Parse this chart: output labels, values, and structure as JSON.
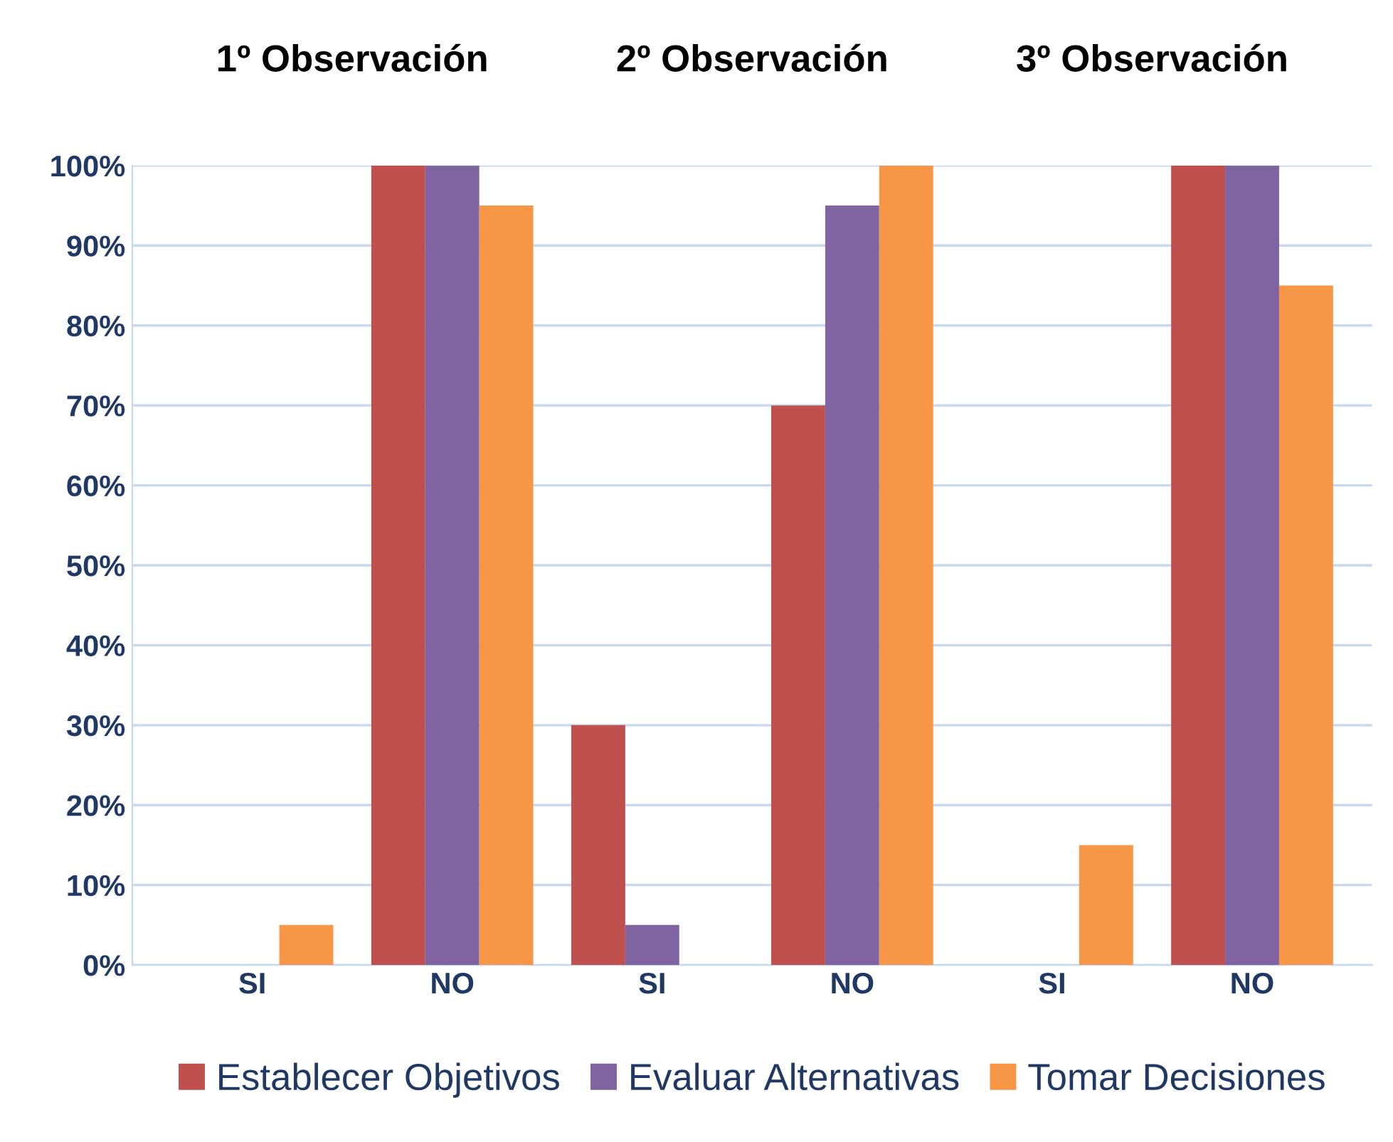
{
  "chart_data": {
    "type": "bar",
    "categories": [
      "SI",
      "NO",
      "SI",
      "NO",
      "SI",
      "NO"
    ],
    "series": [
      {
        "name": "Establecer Objetivos",
        "color": "#c0504d",
        "values": [
          0,
          100,
          30,
          70,
          0,
          100
        ]
      },
      {
        "name": "Evaluar Alternativas",
        "color": "#8064a2",
        "values": [
          0,
          100,
          5,
          95,
          0,
          100
        ]
      },
      {
        "name": "Tomar Decisiones",
        "color": "#f79646",
        "values": [
          5,
          95,
          0,
          100,
          15,
          85
        ]
      }
    ],
    "annotations": [
      "1º Observación",
      "2º Observación",
      "3º Observación"
    ],
    "ylim": [
      0,
      100
    ],
    "yticks": [
      {
        "value": 0,
        "label": "0%"
      },
      {
        "value": 10,
        "label": "10%"
      },
      {
        "value": 20,
        "label": "20%"
      },
      {
        "value": 30,
        "label": "30%"
      },
      {
        "value": 40,
        "label": "40%"
      },
      {
        "value": 50,
        "label": "50%"
      },
      {
        "value": 60,
        "label": "60%"
      },
      {
        "value": 70,
        "label": "70%"
      },
      {
        "value": 80,
        "label": "80%"
      },
      {
        "value": 90,
        "label": "90%"
      },
      {
        "value": 100,
        "label": "100%"
      }
    ],
    "grid": "y",
    "legend": "bottom"
  }
}
